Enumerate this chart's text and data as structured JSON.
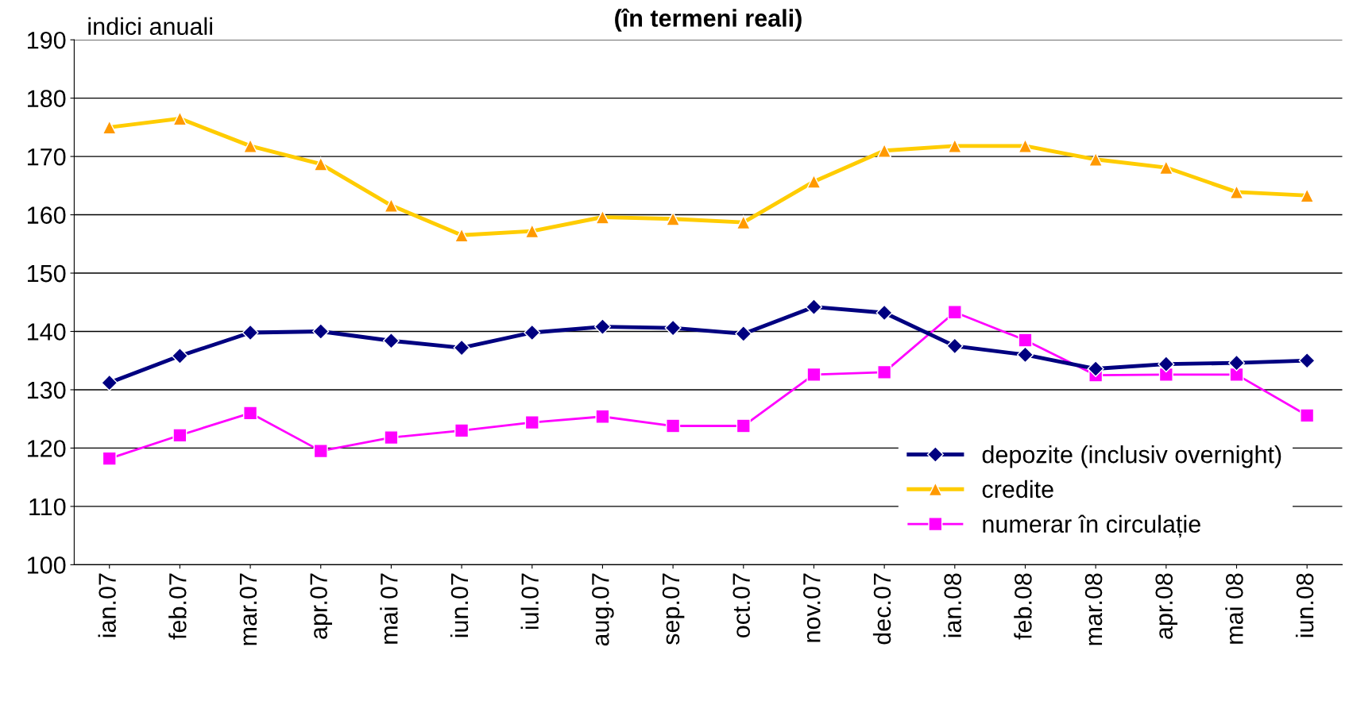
{
  "chart_data": {
    "type": "line",
    "title": "(în termeni reali)",
    "ylabel": "indici anuali",
    "categories": [
      "ian.07",
      "feb.07",
      "mar.07",
      "apr.07",
      "mai 07",
      "iun.07",
      "iul.07",
      "aug.07",
      "sep.07",
      "oct.07",
      "nov.07",
      "dec.07",
      "ian.08",
      "feb.08",
      "mar.08",
      "apr.08",
      "mai 08",
      "iun.08"
    ],
    "series": [
      {
        "name": "depozite (inclusiv overnight)",
        "color": "#000080",
        "marker": "diamond",
        "values": [
          131.2,
          135.8,
          139.8,
          140.0,
          138.4,
          137.2,
          139.8,
          140.8,
          140.6,
          139.6,
          144.2,
          143.2,
          137.5,
          136.0,
          133.6,
          134.4,
          134.6,
          135.0
        ]
      },
      {
        "name": "credite",
        "color": "#ffcc00",
        "marker": "triangle",
        "values": [
          175.0,
          176.5,
          171.8,
          168.7,
          161.6,
          156.5,
          157.2,
          159.6,
          159.3,
          158.7,
          165.7,
          171.0,
          171.8,
          171.8,
          169.5,
          168.1,
          163.9,
          163.3
        ]
      },
      {
        "name": "numerar în circulație",
        "color": "#ff00ff",
        "marker": "square",
        "values": [
          118.2,
          122.2,
          126.0,
          119.5,
          121.8,
          123.0,
          124.4,
          125.4,
          123.8,
          123.8,
          132.6,
          133.0,
          143.3,
          138.5,
          132.5,
          132.6,
          132.6,
          125.6
        ]
      }
    ],
    "ylim": [
      100,
      190
    ],
    "yticks": [
      100,
      110,
      120,
      130,
      140,
      150,
      160,
      170,
      180,
      190
    ],
    "grid": "y",
    "legend": "bottom right"
  }
}
